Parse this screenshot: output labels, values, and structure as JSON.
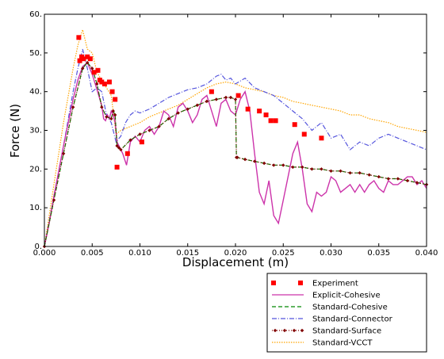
{
  "chart_data": {
    "type": "line",
    "xlabel": "Displacement (m)",
    "ylabel": "Force (N)",
    "xlim": [
      0,
      0.04
    ],
    "ylim": [
      0,
      60
    ],
    "x_ticks": [
      "0.000",
      "0.005",
      "0.010",
      "0.015",
      "0.020",
      "0.025",
      "0.030",
      "0.035",
      "0.040"
    ],
    "y_ticks": [
      "0.",
      "10.",
      "20.",
      "30.",
      "40.",
      "50.",
      "60."
    ],
    "grid": false,
    "legend_position": "bottom-right, below plot",
    "series": [
      {
        "name": "Experiment",
        "style": "markers",
        "marker": "square",
        "color": "#ff0000",
        "x": [
          0.0036,
          0.0037,
          0.0039,
          0.0041,
          0.0045,
          0.0048,
          0.0052,
          0.0056,
          0.0058,
          0.006,
          0.0063,
          0.0068,
          0.0071,
          0.0074,
          0.0076,
          0.0087,
          0.0102,
          0.0175,
          0.0203,
          0.0213,
          0.0225,
          0.0232,
          0.0237,
          0.0242,
          0.0262,
          0.0272,
          0.029
        ],
        "y": [
          54,
          48,
          49,
          48.5,
          49,
          48.5,
          45,
          45.5,
          43,
          42.5,
          42,
          42.5,
          40,
          38,
          20.5,
          24,
          27,
          40,
          39,
          35.5,
          35,
          34,
          32.5,
          32.5,
          31.5,
          29,
          28
        ]
      },
      {
        "name": "Explicit-Cohesive",
        "style": "solid",
        "color": "#cc33aa",
        "x": [
          0,
          0.0005,
          0.001,
          0.0015,
          0.002,
          0.0025,
          0.003,
          0.0035,
          0.004,
          0.0045,
          0.005,
          0.0055,
          0.006,
          0.0062,
          0.0064,
          0.0066,
          0.0068,
          0.007,
          0.0072,
          0.0074,
          0.0076,
          0.0078,
          0.0082,
          0.0086,
          0.009,
          0.0095,
          0.01,
          0.0105,
          0.011,
          0.0115,
          0.012,
          0.0125,
          0.013,
          0.0135,
          0.014,
          0.0145,
          0.015,
          0.0155,
          0.016,
          0.0165,
          0.017,
          0.0175,
          0.018,
          0.0185,
          0.019,
          0.0195,
          0.02,
          0.0205,
          0.021,
          0.0215,
          0.022,
          0.0225,
          0.023,
          0.0235,
          0.024,
          0.0245,
          0.025,
          0.0255,
          0.026,
          0.0265,
          0.027,
          0.0275,
          0.028,
          0.0285,
          0.029,
          0.0295,
          0.03,
          0.0305,
          0.031,
          0.0315,
          0.032,
          0.0325,
          0.033,
          0.0335,
          0.034,
          0.0345,
          0.035,
          0.0355,
          0.036,
          0.0365,
          0.037,
          0.0375,
          0.038,
          0.0385,
          0.039,
          0.0395,
          0.04
        ],
        "y": [
          0,
          6,
          13,
          19.5,
          26,
          32,
          38,
          43,
          46.5,
          47.5,
          44.5,
          40.5,
          36.5,
          33,
          32.5,
          34,
          33,
          35,
          34,
          32,
          27,
          26,
          24,
          21,
          27,
          28.5,
          27,
          30,
          31,
          29,
          31,
          35,
          34,
          31,
          36,
          37,
          35,
          32,
          34,
          38,
          39,
          35,
          31,
          37,
          38,
          35,
          34,
          38,
          40,
          35,
          24,
          14,
          11,
          17,
          8,
          6,
          12,
          18,
          24,
          27,
          20,
          11,
          9,
          14,
          13,
          14,
          18,
          17,
          14,
          15,
          16,
          14,
          16,
          14,
          16,
          17,
          15,
          14,
          17,
          16,
          16,
          17,
          18,
          18,
          16,
          17,
          15
        ]
      },
      {
        "name": "Standard-Cohesive",
        "style": "dashed",
        "color": "#008800",
        "x": [
          0,
          0.001,
          0.002,
          0.003,
          0.004,
          0.0045,
          0.005,
          0.0055,
          0.006,
          0.0065,
          0.007,
          0.0072,
          0.0074,
          0.0076,
          0.0078,
          0.008,
          0.009,
          0.01,
          0.011,
          0.012,
          0.013,
          0.014,
          0.015,
          0.016,
          0.017,
          0.018,
          0.019,
          0.0195,
          0.02,
          0.0201,
          0.0202,
          0.021,
          0.022,
          0.023,
          0.024,
          0.025,
          0.026,
          0.027,
          0.028,
          0.029,
          0.03,
          0.031,
          0.032,
          0.033,
          0.034,
          0.035,
          0.036,
          0.037,
          0.038,
          0.039,
          0.04
        ],
        "y": [
          0,
          12,
          24,
          36,
          46,
          47.5,
          46,
          42,
          36,
          33.5,
          33,
          35,
          34,
          26,
          25.5,
          25,
          27.5,
          29,
          30,
          31,
          33,
          34.5,
          35.5,
          36.5,
          37.5,
          38,
          38.5,
          38.5,
          38,
          23,
          23,
          22.5,
          22,
          21.5,
          21,
          21,
          20.5,
          20.5,
          20,
          20,
          19.5,
          19.5,
          19,
          19,
          18.5,
          18,
          17.5,
          17.5,
          17,
          16.5,
          16
        ]
      },
      {
        "name": "Standard-Connector",
        "style": "dashdot",
        "color": "#5555dd",
        "x": [
          0,
          0.001,
          0.002,
          0.003,
          0.0035,
          0.004,
          0.0045,
          0.005,
          0.0055,
          0.006,
          0.0065,
          0.007,
          0.0075,
          0.008,
          0.0085,
          0.009,
          0.0095,
          0.01,
          0.011,
          0.012,
          0.013,
          0.014,
          0.015,
          0.016,
          0.017,
          0.018,
          0.0185,
          0.019,
          0.0195,
          0.02,
          0.021,
          0.022,
          0.023,
          0.024,
          0.025,
          0.026,
          0.027,
          0.028,
          0.029,
          0.03,
          0.031,
          0.032,
          0.033,
          0.034,
          0.035,
          0.036,
          0.037,
          0.038,
          0.039,
          0.04
        ],
        "y": [
          0,
          13,
          26,
          40,
          46,
          51,
          46,
          40,
          41,
          40,
          34,
          32,
          27,
          28.5,
          32,
          34,
          35,
          34.5,
          35.5,
          37,
          38.5,
          39.5,
          40.5,
          41,
          42,
          44,
          44.5,
          43,
          43.5,
          42,
          43.5,
          41,
          40,
          39,
          37,
          35,
          33,
          30,
          32,
          28,
          29,
          25,
          27,
          26,
          28,
          29,
          28,
          27,
          26,
          25
        ]
      },
      {
        "name": "Standard-Surface",
        "style": "dotted-markers",
        "marker": "diamond",
        "color": "#800000",
        "x": [
          0,
          0.001,
          0.002,
          0.003,
          0.004,
          0.0045,
          0.005,
          0.0055,
          0.006,
          0.0065,
          0.007,
          0.0072,
          0.0074,
          0.0076,
          0.0078,
          0.008,
          0.009,
          0.01,
          0.011,
          0.012,
          0.013,
          0.014,
          0.015,
          0.016,
          0.017,
          0.018,
          0.019,
          0.0195,
          0.02,
          0.0201,
          0.0202,
          0.021,
          0.022,
          0.023,
          0.024,
          0.025,
          0.026,
          0.027,
          0.028,
          0.029,
          0.03,
          0.031,
          0.032,
          0.033,
          0.034,
          0.035,
          0.036,
          0.037,
          0.038,
          0.039,
          0.04
        ],
        "y": [
          0,
          12,
          24,
          36,
          46,
          47.5,
          46,
          42,
          36,
          33.5,
          33,
          35,
          34,
          26,
          25.5,
          25,
          27.5,
          29,
          30,
          31,
          33,
          34.5,
          35.5,
          36.5,
          37.5,
          38,
          38.5,
          38.5,
          38,
          23,
          23,
          22.5,
          22,
          21.5,
          21,
          21,
          20.5,
          20.5,
          20,
          20,
          19.5,
          19.5,
          19,
          19,
          18.5,
          18,
          17.5,
          17.5,
          17,
          16.5,
          16
        ]
      },
      {
        "name": "Standard-VCCT",
        "style": "dotted",
        "color": "#ffa500",
        "x": [
          0,
          0.001,
          0.002,
          0.003,
          0.0035,
          0.004,
          0.0045,
          0.005,
          0.0055,
          0.006,
          0.0065,
          0.007,
          0.0075,
          0.008,
          0.009,
          0.01,
          0.011,
          0.012,
          0.013,
          0.014,
          0.015,
          0.016,
          0.017,
          0.018,
          0.019,
          0.02,
          0.021,
          0.022,
          0.023,
          0.024,
          0.025,
          0.026,
          0.027,
          0.028,
          0.029,
          0.03,
          0.031,
          0.032,
          0.033,
          0.034,
          0.035,
          0.036,
          0.037,
          0.038,
          0.039,
          0.04
        ],
        "y": [
          0,
          16,
          32,
          46,
          52,
          56,
          51,
          50,
          45,
          43,
          41,
          39,
          29,
          30,
          31,
          32,
          33.5,
          34.5,
          35.5,
          36.5,
          38,
          39.5,
          41,
          42,
          42.5,
          42,
          41,
          40.5,
          40,
          39,
          38.5,
          37.5,
          37,
          36.5,
          36,
          35.5,
          35,
          34,
          34,
          33,
          32.5,
          32,
          31,
          30.5,
          30,
          29.5
        ]
      }
    ]
  }
}
